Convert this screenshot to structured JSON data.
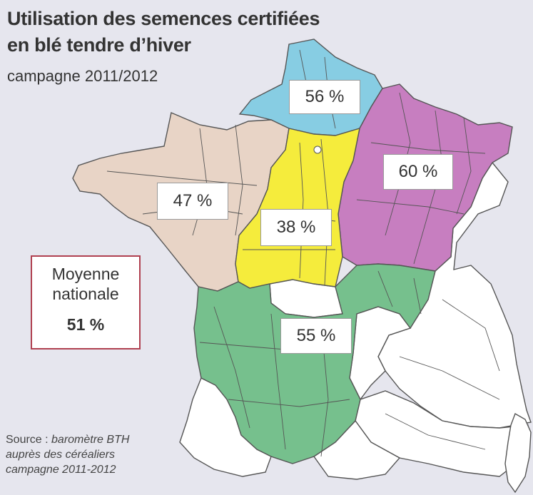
{
  "title_line1": "Utilisation des semences certifiées",
  "title_line2": "en blé tendre d’hiver",
  "subtitle": "campagne 2011/2012",
  "regions": [
    {
      "name": "nord",
      "label": "56 %",
      "value": 56,
      "color": "#87cde3"
    },
    {
      "name": "est",
      "label": "60 %",
      "value": 60,
      "color": "#c77ec0"
    },
    {
      "name": "ouest",
      "label": "47 %",
      "value": 47,
      "color": "#e8d4c6"
    },
    {
      "name": "centre",
      "label": "38 %",
      "value": 38,
      "color": "#f5ec3c"
    },
    {
      "name": "sud-centre",
      "label": "55 %",
      "value": 55,
      "color": "#76c08d"
    }
  ],
  "average": {
    "line1": "Moyenne",
    "line2": "nationale",
    "value_label": "51 %",
    "value": 51
  },
  "source": {
    "prefix": "Source : ",
    "line1_italic": "baromètre BTH",
    "line2": "auprès des céréaliers",
    "line3": "campagne 2011-2012"
  },
  "colors": {
    "background": "#e6e6ee",
    "no_data": "#ffffff",
    "border": "#555555",
    "average_border": "#b04050"
  }
}
